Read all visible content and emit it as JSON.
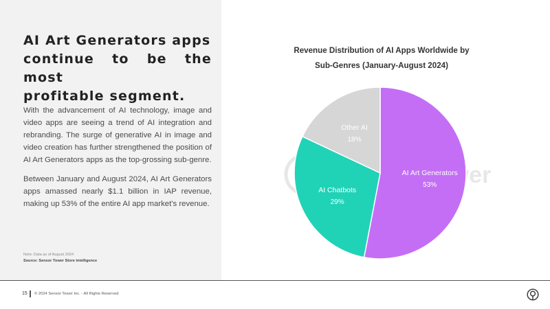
{
  "headline": {
    "line1": "AI Art Generators apps",
    "line2": "continue to be the most",
    "line3": "profitable segment."
  },
  "paragraphs": [
    "With the advancement of AI technology, image and video apps are seeing a trend of AI integration and rebranding. The surge of generative AI in image and video creation has further strengthened the position of AI Art Generators apps as the top-grossing sub-genre.",
    "Between January and August 2024, AI Art Generators apps amassed nearly $1.1 billion in IAP revenue, making up 53% of the entire AI app market's revenue."
  ],
  "note": "Note: Data as of August 2024",
  "source": "Source: Sensor Tower Store intelligence",
  "footer": {
    "page_number": "15",
    "copyright": "© 2024 Sensor Tower Inc. - All Rights Reserved"
  },
  "watermark": "Sensor Tower",
  "colors": {
    "ai_art_generators": "#c46ef5",
    "ai_chatbots": "#20d3b7",
    "other_ai": "#d6d6d6",
    "left_panel": "#f2f2f2"
  },
  "chart_data": {
    "type": "pie",
    "title_line1": "Revenue Distribution of AI Apps Worldwide by",
    "title_line2": "Sub-Genres (January-August 2024)",
    "slices": [
      {
        "label": "AI Art Generators",
        "value": 53,
        "display": "53%",
        "color": "#c46ef5"
      },
      {
        "label": "AI Chatbots",
        "value": 29,
        "display": "29%",
        "color": "#20d3b7"
      },
      {
        "label": "Other AI",
        "value": 18,
        "display": "18%",
        "color": "#d6d6d6"
      }
    ]
  }
}
